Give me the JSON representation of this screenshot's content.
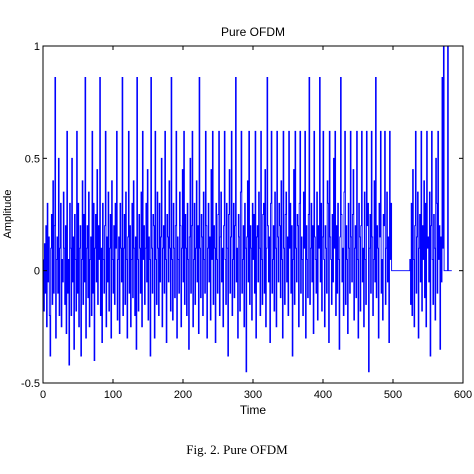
{
  "top_text": "",
  "caption": "Fig. 2. Pure OFDM",
  "colors": {
    "line": "#0000ff",
    "axis": "#000000",
    "background": "#ffffff"
  },
  "chart_data": {
    "type": "line",
    "title": "Pure OFDM",
    "xlabel": "Time",
    "ylabel": "Amplitude",
    "xlim": [
      0,
      600
    ],
    "ylim": [
      -0.5,
      1
    ],
    "xticks": [
      0,
      100,
      200,
      300,
      400,
      500,
      600
    ],
    "yticks": [
      -0.5,
      0,
      0.5,
      1
    ],
    "xtick_labels": [
      "0",
      "100",
      "200",
      "300",
      "400",
      "500",
      "600"
    ],
    "ytick_labels": [
      "-0.5",
      "0",
      "0.5",
      "1"
    ],
    "grid": false,
    "series": [
      {
        "type": "step",
        "x_start": 1,
        "x_step": 1,
        "values": [
          0.05,
          -0.18,
          0.12,
          -0.1,
          0.2,
          -0.25,
          0.3,
          -0.05,
          0.15,
          -0.2,
          -0.38,
          0.1,
          0.25,
          -0.15,
          0.4,
          -0.1,
          0.2,
          0.86,
          -0.3,
          0.05,
          0.15,
          -0.1,
          0.5,
          -0.2,
          0.1,
          0.3,
          -0.25,
          0.05,
          -0.05,
          0.35,
          0.1,
          -0.15,
          0.2,
          -0.28,
          0.62,
          -0.1,
          0.05,
          -0.42,
          0.3,
          0.1,
          -0.2,
          0.5,
          -0.05,
          0.15,
          -0.35,
          0.25,
          0.05,
          -0.18,
          0.62,
          -0.1,
          0.3,
          -0.25,
          0.1,
          0.2,
          -0.38,
          0.05,
          0.4,
          -0.15,
          0.25,
          -0.05,
          0.86,
          -0.3,
          0.1,
          0.2,
          -0.12,
          0.35,
          -0.25,
          0.05,
          0.15,
          -0.2,
          0.62,
          -0.1,
          0.3,
          -0.4,
          0.1,
          0.25,
          -0.05,
          0.45,
          -0.15,
          0.2,
          0.05,
          0.86,
          -0.2,
          0.1,
          -0.32,
          0.3,
          0.05,
          -0.1,
          0.2,
          0.62,
          -0.25,
          0.15,
          -0.05,
          0.35,
          -0.18,
          0.1,
          0.25,
          -0.3,
          0.4,
          0.05,
          -0.1,
          0.2,
          -0.15,
          0.3,
          0.1,
          0.62,
          -0.22,
          0.05,
          0.15,
          -0.28,
          0.3,
          0.1,
          -0.05,
          0.86,
          -0.2,
          0.1,
          0.25,
          -0.15,
          0.35,
          0.05,
          -0.3,
          0.15,
          0.62,
          -0.1,
          0.2,
          -0.25,
          0.05,
          0.3,
          -0.12,
          0.4,
          0.1,
          -0.2,
          0.15,
          -0.35,
          0.86,
          0.05,
          -0.18,
          0.25,
          0.1,
          -0.1,
          0.35,
          -0.25,
          0.62,
          0.05,
          0.2,
          -0.15,
          0.1,
          0.3,
          -0.05,
          0.45,
          -0.22,
          0.15,
          0.05,
          -0.38,
          0.86,
          0.1,
          -0.1,
          0.25,
          0.2,
          -0.3,
          0.62,
          0.05,
          -0.15,
          0.35,
          0.1,
          -0.2,
          0.3,
          -0.05,
          0.15,
          0.5,
          -0.25,
          0.1,
          0.2,
          -0.1,
          0.62,
          0.05,
          -0.32,
          0.25,
          0.15,
          -0.05,
          0.4,
          0.1,
          -0.18,
          0.86,
          0.05,
          -0.22,
          0.3,
          0.1,
          -0.12,
          0.2,
          0.62,
          -0.3,
          0.15,
          0.05,
          -0.1,
          0.35,
          0.2,
          -0.25,
          0.1,
          0.45,
          -0.05,
          0.62,
          -0.15,
          0.25,
          0.1,
          -0.2,
          0.3,
          0.05,
          -0.35,
          0.15,
          0.5,
          -0.1,
          0.2,
          0.62,
          -0.25,
          0.05,
          0.3,
          -0.15,
          0.1,
          0.4,
          -0.05,
          0.2,
          -0.28,
          0.86,
          0.1,
          -0.12,
          0.25,
          0.15,
          -0.2,
          0.35,
          0.05,
          -0.1,
          0.62,
          0.2,
          -0.3,
          0.1,
          0.3,
          -0.05,
          0.15,
          -0.22,
          0.45,
          0.05,
          0.62,
          -0.15,
          0.2,
          0.1,
          -0.32,
          0.3,
          0.05,
          -0.1,
          0.25,
          0.62,
          -0.2,
          0.15,
          0.35,
          -0.05,
          0.1,
          -0.25,
          0.2,
          0.62,
          0.05,
          -0.15,
          0.3,
          0.1,
          -0.38,
          0.25,
          0.45,
          -0.1,
          0.15,
          0.62,
          -0.2,
          0.05,
          0.3,
          -0.12,
          0.2,
          0.86,
          -0.05,
          0.1,
          -0.3,
          0.25,
          0.15,
          -0.18,
          0.35,
          0.62,
          -0.1,
          0.05,
          0.2,
          -0.25,
          0.3,
          0.1,
          -0.45,
          0.15,
          0.4,
          -0.05,
          0.62,
          -0.15,
          0.2,
          0.1,
          -0.22,
          0.3,
          0.05,
          0.25,
          -0.1,
          0.62,
          -0.3,
          0.15,
          0.2,
          -0.05,
          0.35,
          0.1,
          -0.2,
          0.62,
          0.05,
          -0.15,
          0.25,
          0.3,
          -0.1,
          0.45,
          -0.25,
          0.1,
          0.86,
          0.2,
          -0.05,
          0.15,
          -0.32,
          0.3,
          0.62,
          -0.1,
          0.05,
          0.2,
          -0.18,
          0.35,
          0.1,
          -0.25,
          0.62,
          0.15,
          -0.05,
          0.3,
          0.2,
          -0.12,
          0.4,
          0.05,
          -0.3,
          0.62,
          0.1,
          -0.15,
          0.25,
          0.35,
          -0.05,
          0.15,
          -0.2,
          0.62,
          0.1,
          0.3,
          -0.1,
          0.2,
          -0.38,
          0.05,
          0.45,
          -0.15,
          0.62,
          0.1,
          -0.05,
          0.25,
          0.2,
          -0.25,
          0.3,
          0.62,
          -0.1,
          0.15,
          0.05,
          -0.2,
          0.35,
          0.1,
          0.62,
          -0.3,
          0.2,
          0.05,
          -0.12,
          0.25,
          0.86,
          -0.15,
          0.1,
          0.3,
          -0.05,
          0.2,
          -0.28,
          0.62,
          0.15,
          0.05,
          -0.1,
          0.35,
          -0.22,
          0.2,
          0.1,
          0.86,
          -0.05,
          0.3,
          -0.18,
          0.15,
          0.62,
          0.05,
          -0.25,
          0.2,
          0.1,
          -0.1,
          0.4,
          0.3,
          -0.32,
          0.62,
          0.15,
          0.05,
          -0.15,
          0.25,
          -0.05,
          0.5,
          0.1,
          0.62,
          -0.2,
          0.2,
          -0.1,
          0.3,
          0.05,
          -0.35,
          0.15,
          0.86,
          0.25,
          -0.05,
          0.1,
          -0.2,
          0.35,
          0.62,
          -0.15,
          0.2,
          0.05,
          -0.28,
          0.3,
          0.1,
          -0.1,
          0.62,
          0.15,
          -0.05,
          0.25,
          0.45,
          -0.22,
          0.1,
          0.2,
          -0.12,
          0.62,
          0.05,
          -0.3,
          0.3,
          0.15,
          -0.18,
          0.2,
          0.62,
          -0.05,
          0.1,
          -0.25,
          0.35,
          0.05,
          -0.15,
          0.62,
          0.2,
          0.3,
          -0.45,
          0.1,
          0.25,
          -0.1,
          0.62,
          0.15,
          -0.2,
          0.05,
          0.4,
          -0.05,
          0.86,
          -0.12,
          0.2,
          0.1,
          -0.3,
          0.3,
          0.15,
          0.62,
          -0.1,
          0.05,
          -0.22,
          0.25,
          0.2,
          0.62,
          -0.15,
          0.1,
          0.35,
          -0.05,
          0.15,
          -0.32,
          0.62,
          0.05,
          0.3,
          0,
          0,
          0,
          0,
          0,
          0,
          0,
          0,
          0,
          0,
          0,
          0,
          0,
          0,
          0,
          0,
          0,
          0,
          0,
          0,
          0,
          0,
          0,
          0,
          0,
          0,
          0.05,
          -0.15,
          0.3,
          -0.2,
          0.45,
          0.05,
          -0.25,
          0.2,
          0.62,
          -0.1,
          0.15,
          0.35,
          -0.3,
          0.1,
          0.25,
          -0.05,
          0.62,
          -0.18,
          0.2,
          0.05,
          0.4,
          -0.12,
          0.3,
          -0.25,
          0.62,
          0.1,
          0.15,
          -0.05,
          0.35,
          -0.38,
          0.2,
          0.62,
          0.05,
          -0.15,
          0.25,
          0.1,
          -0.22,
          0.5,
          0.3,
          -0.1,
          0.62,
          0.05,
          0.2,
          -0.35,
          0.15,
          -0.05,
          0.86,
          0.1,
          1.0,
          0,
          0,
          0,
          0,
          0,
          1.0,
          0,
          0,
          0,
          0,
          0
        ]
      }
    ]
  }
}
